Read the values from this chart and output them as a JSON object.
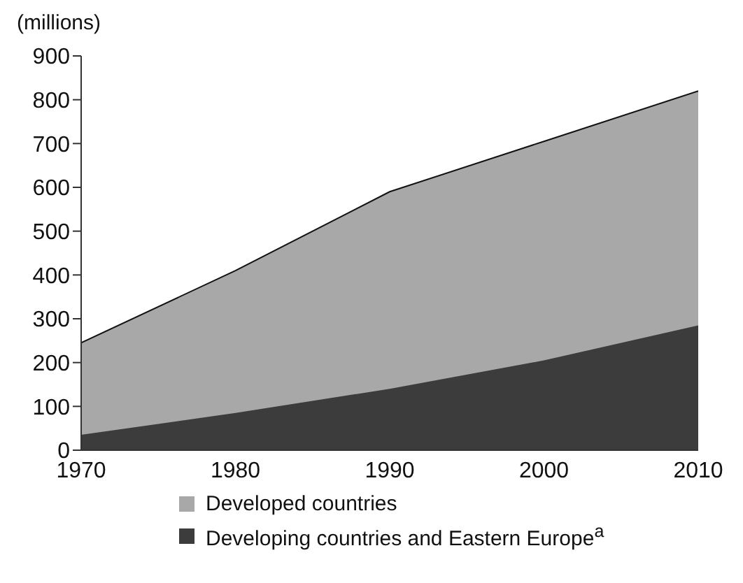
{
  "chart_data": {
    "type": "area",
    "stacked": true,
    "ylabel": "(millions)",
    "x": [
      1970,
      1980,
      1990,
      2000,
      2010
    ],
    "xlim": [
      1970,
      2010
    ],
    "xticks": [
      1970,
      1980,
      1990,
      2000,
      2010
    ],
    "ylim": [
      0,
      900
    ],
    "yticks": [
      0,
      100,
      200,
      300,
      400,
      500,
      600,
      700,
      800,
      900
    ],
    "grid": false,
    "legend": "bottom",
    "series": [
      {
        "name": "Developing countries and Eastern Europe$^{a}$",
        "color": "#3c3c3c",
        "values": [
          35,
          85,
          140,
          205,
          285
        ]
      },
      {
        "name": "Developed countries",
        "color": "#a8a8a8",
        "values": [
          210,
          325,
          450,
          500,
          535
        ]
      }
    ]
  }
}
